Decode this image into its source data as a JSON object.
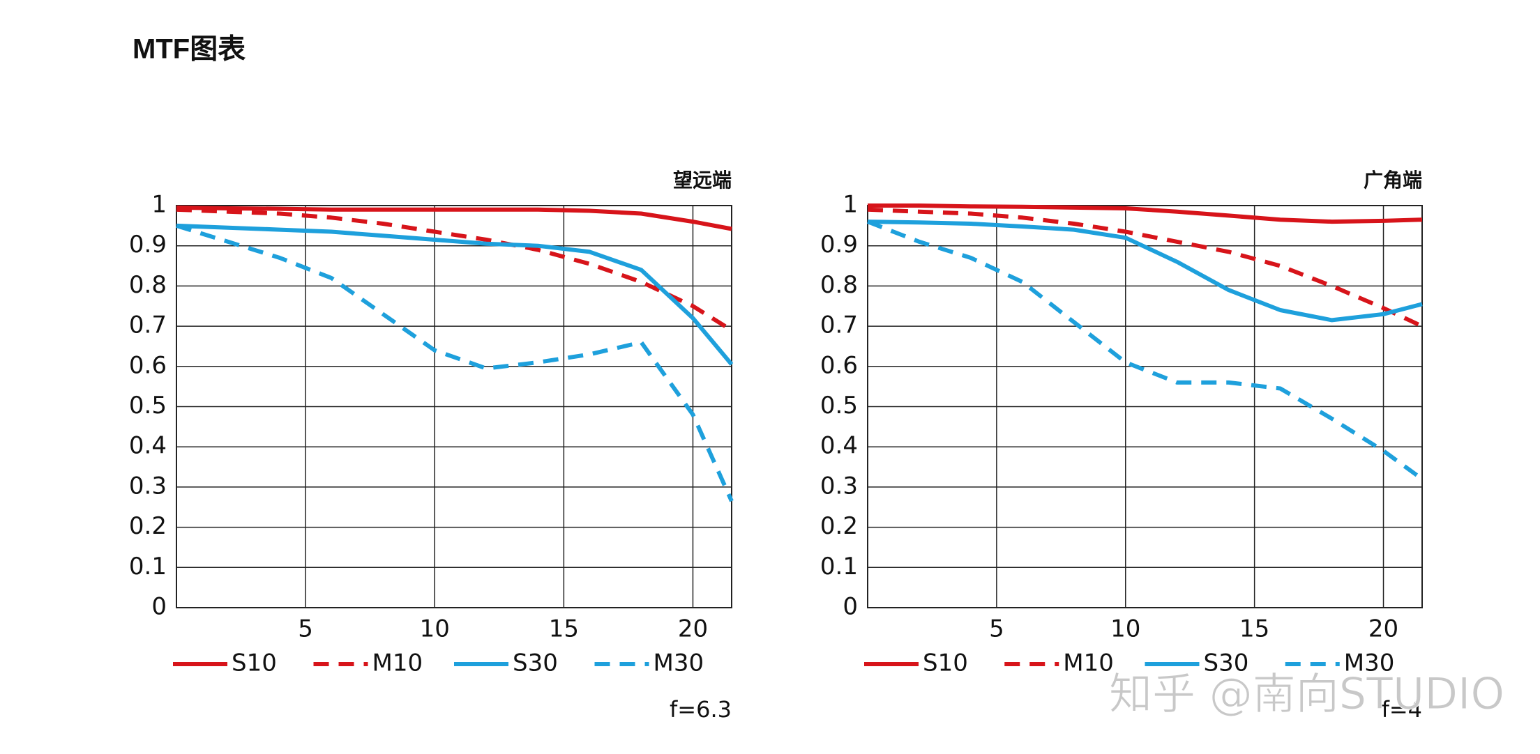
{
  "title": "MTF图表",
  "watermark": "知乎 @南向STUDIO",
  "chart_data": [
    {
      "type": "line",
      "corner_label": "望远端",
      "note": "f=6.3",
      "grid": true,
      "xlim": [
        0,
        21.5
      ],
      "xticks": [
        5,
        10,
        15,
        20
      ],
      "ylim": [
        0,
        1
      ],
      "yticks": [
        0,
        0.1,
        0.2,
        0.3,
        0.4,
        0.5,
        0.6,
        0.7,
        0.8,
        0.9,
        1
      ],
      "x": [
        0,
        2,
        4,
        6,
        8,
        10,
        12,
        14,
        16,
        18,
        20,
        21.5
      ],
      "series": [
        {
          "name": "S10",
          "color": "#d7141a",
          "dashed": false,
          "values": [
            0.995,
            0.993,
            0.992,
            0.99,
            0.99,
            0.99,
            0.99,
            0.99,
            0.987,
            0.98,
            0.96,
            0.942
          ]
        },
        {
          "name": "M10",
          "color": "#d7141a",
          "dashed": true,
          "values": [
            0.99,
            0.985,
            0.98,
            0.97,
            0.955,
            0.935,
            0.915,
            0.89,
            0.855,
            0.81,
            0.75,
            0.69
          ]
        },
        {
          "name": "S30",
          "color": "#1ea0dc",
          "dashed": false,
          "values": [
            0.95,
            0.945,
            0.94,
            0.935,
            0.925,
            0.915,
            0.905,
            0.9,
            0.885,
            0.84,
            0.72,
            0.605
          ]
        },
        {
          "name": "M30",
          "color": "#1ea0dc",
          "dashed": true,
          "values": [
            0.95,
            0.91,
            0.87,
            0.82,
            0.73,
            0.64,
            0.595,
            0.61,
            0.63,
            0.66,
            0.48,
            0.265
          ]
        }
      ]
    },
    {
      "type": "line",
      "corner_label": "广角端",
      "note": "f=4",
      "grid": true,
      "xlim": [
        0,
        21.5
      ],
      "xticks": [
        5,
        10,
        15,
        20
      ],
      "ylim": [
        0,
        1
      ],
      "yticks": [
        0,
        0.1,
        0.2,
        0.3,
        0.4,
        0.5,
        0.6,
        0.7,
        0.8,
        0.9,
        1
      ],
      "x": [
        0,
        2,
        4,
        6,
        8,
        10,
        12,
        14,
        16,
        18,
        20,
        21.5
      ],
      "series": [
        {
          "name": "S10",
          "color": "#d7141a",
          "dashed": false,
          "values": [
            1,
            1,
            0.998,
            0.997,
            0.995,
            0.993,
            0.985,
            0.975,
            0.965,
            0.96,
            0.962,
            0.965
          ]
        },
        {
          "name": "M10",
          "color": "#d7141a",
          "dashed": true,
          "values": [
            0.99,
            0.985,
            0.98,
            0.97,
            0.955,
            0.935,
            0.91,
            0.885,
            0.85,
            0.8,
            0.745,
            0.7
          ]
        },
        {
          "name": "S30",
          "color": "#1ea0dc",
          "dashed": false,
          "values": [
            0.96,
            0.958,
            0.955,
            0.948,
            0.94,
            0.92,
            0.86,
            0.79,
            0.74,
            0.715,
            0.73,
            0.755
          ]
        },
        {
          "name": "M30",
          "color": "#1ea0dc",
          "dashed": true,
          "values": [
            0.96,
            0.91,
            0.87,
            0.81,
            0.71,
            0.61,
            0.56,
            0.56,
            0.545,
            0.47,
            0.39,
            0.32
          ]
        }
      ]
    }
  ]
}
